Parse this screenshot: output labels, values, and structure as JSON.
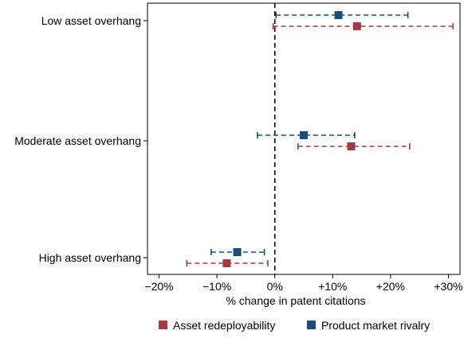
{
  "chart_data": {
    "type": "scatter",
    "subtype": "coefficient-plot-with-confidence-intervals",
    "orientation": "horizontal",
    "xlabel": "% change in patent citations",
    "x_tick_values": [
      -20,
      -10,
      0,
      10,
      20,
      30
    ],
    "x_tick_labels": [
      "−20%",
      "−10%",
      "0%",
      "+10%",
      "+20%",
      "+30%"
    ],
    "xlim": [
      -22,
      32
    ],
    "categories": [
      "Low asset overhang",
      "Moderate asset overhang",
      "High asset overhang"
    ],
    "reference_line": {
      "x": 0,
      "style": "dashed"
    },
    "grid": false,
    "legend_position": "bottom",
    "series": [
      {
        "name": "Asset redeployability",
        "color": "#A23A45",
        "marker": "square",
        "points": [
          {
            "category": "Low asset overhang",
            "estimate": 14.2,
            "ci_low": -0.3,
            "ci_high": 30.8
          },
          {
            "category": "Moderate asset overhang",
            "estimate": 13.2,
            "ci_low": 4.0,
            "ci_high": 23.3
          },
          {
            "category": "High asset overhang",
            "estimate": -8.3,
            "ci_low": -15.2,
            "ci_high": -1.2
          }
        ]
      },
      {
        "name": "Product market rivalry",
        "color": "#1B4C7E",
        "marker": "square",
        "points": [
          {
            "category": "Low asset overhang",
            "estimate": 11.0,
            "ci_low": 0.2,
            "ci_high": 23.0
          },
          {
            "category": "Moderate asset overhang",
            "estimate": 5.0,
            "ci_low": -3.0,
            "ci_high": 13.8
          },
          {
            "category": "High asset overhang",
            "estimate": -6.5,
            "ci_low": -11.0,
            "ci_high": -1.8
          }
        ]
      }
    ]
  }
}
